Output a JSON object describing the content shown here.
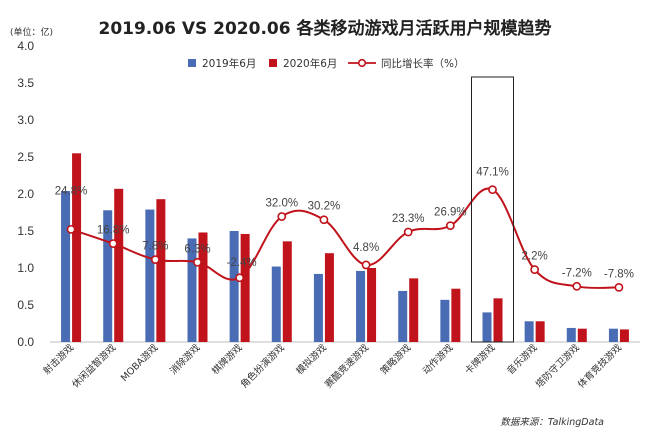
{
  "chart_data": {
    "type": "bar",
    "title": "2019.06 VS 2020.06  各类移动游戏月活跃用户规模趋势",
    "unit_label": "(单位：亿)",
    "source": "数据来源：TalkingData",
    "ylim": [
      0,
      4.0
    ],
    "yticks": [
      "0.0",
      "0.5",
      "1.0",
      "1.5",
      "2.0",
      "2.5",
      "3.0",
      "3.5",
      "4.0"
    ],
    "categories": [
      "射击游戏",
      "休闲益智游戏",
      "MOBA游戏",
      "消除游戏",
      "棋牌游戏",
      "角色扮演游戏",
      "模拟游戏",
      "赛酷竞速游戏",
      "策略游戏",
      "动作游戏",
      "卡牌游戏",
      "音乐游戏",
      "塔防守卫游戏",
      "体育竞技游戏"
    ],
    "series": [
      {
        "name": "2019年6月",
        "color": "#4a6cb5",
        "values": [
          2.04,
          1.78,
          1.79,
          1.4,
          1.5,
          1.02,
          0.92,
          0.96,
          0.69,
          0.57,
          0.4,
          0.28,
          0.19,
          0.18
        ]
      },
      {
        "name": "2020年6月",
        "color": "#c0131b",
        "values": [
          2.55,
          2.07,
          1.93,
          1.48,
          1.46,
          1.36,
          1.2,
          1.0,
          0.86,
          0.72,
          0.59,
          0.28,
          0.18,
          0.17
        ]
      }
    ],
    "growth_series": {
      "name": "同比增长率（%）",
      "color": "#c0131b",
      "values": [
        24.8,
        16.8,
        7.8,
        6.3,
        -2.4,
        32.0,
        30.2,
        4.8,
        23.3,
        26.9,
        47.1,
        2.2,
        -7.2,
        -7.8
      ],
      "labels": [
        "24.8%",
        "16.8%",
        "7.8%",
        "6.3%",
        "-2.4%",
        "32.0%",
        "30.2%",
        "4.8%",
        "23.3%",
        "26.9%",
        "47.1%",
        "2.2%",
        "-7.2%",
        "-7.8%"
      ]
    },
    "highlight_category": "卡牌游戏",
    "grid": false,
    "legend_position": "top"
  }
}
